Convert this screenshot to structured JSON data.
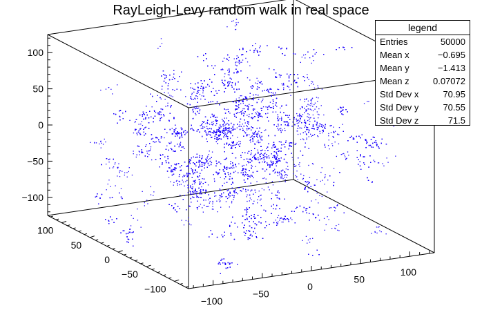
{
  "chart_data": {
    "type": "scatter",
    "title": "RayLeigh-Levy random walk in real space",
    "xlabel": "",
    "ylabel": "",
    "zlabel": "",
    "xlim": [
      -125,
      125
    ],
    "ylim": [
      -125,
      125
    ],
    "zlim": [
      -125,
      125
    ],
    "x_ticks": [
      -100,
      -50,
      0,
      50,
      100
    ],
    "y_ticks": [
      -100,
      -50,
      0,
      50,
      100
    ],
    "z_ticks": [
      -100,
      -50,
      0,
      50,
      100
    ],
    "x_tick_labels": [
      "−100",
      "−50",
      "0",
      "50",
      "100"
    ],
    "y_tick_labels": [
      "−100",
      "−50",
      "0",
      "50",
      "100"
    ],
    "z_tick_labels": [
      "−100",
      "−50",
      "0",
      "50",
      "100"
    ],
    "marker_color": "#1a00ff",
    "grid": false,
    "legend_position": "top-right",
    "stats": {
      "header": "legend",
      "rows": [
        {
          "key": "Entries",
          "value": "50000"
        },
        {
          "key": "Mean x",
          "value": "−0.695"
        },
        {
          "key": "Mean y",
          "value": "−1.413"
        },
        {
          "key": "Mean z",
          "value": "0.07072"
        },
        {
          "key": "Std Dev x",
          "value": "70.95"
        },
        {
          "key": "Std Dev y",
          "value": "70.55"
        },
        {
          "key": "Std Dev z",
          "value": "71.5"
        }
      ]
    }
  }
}
